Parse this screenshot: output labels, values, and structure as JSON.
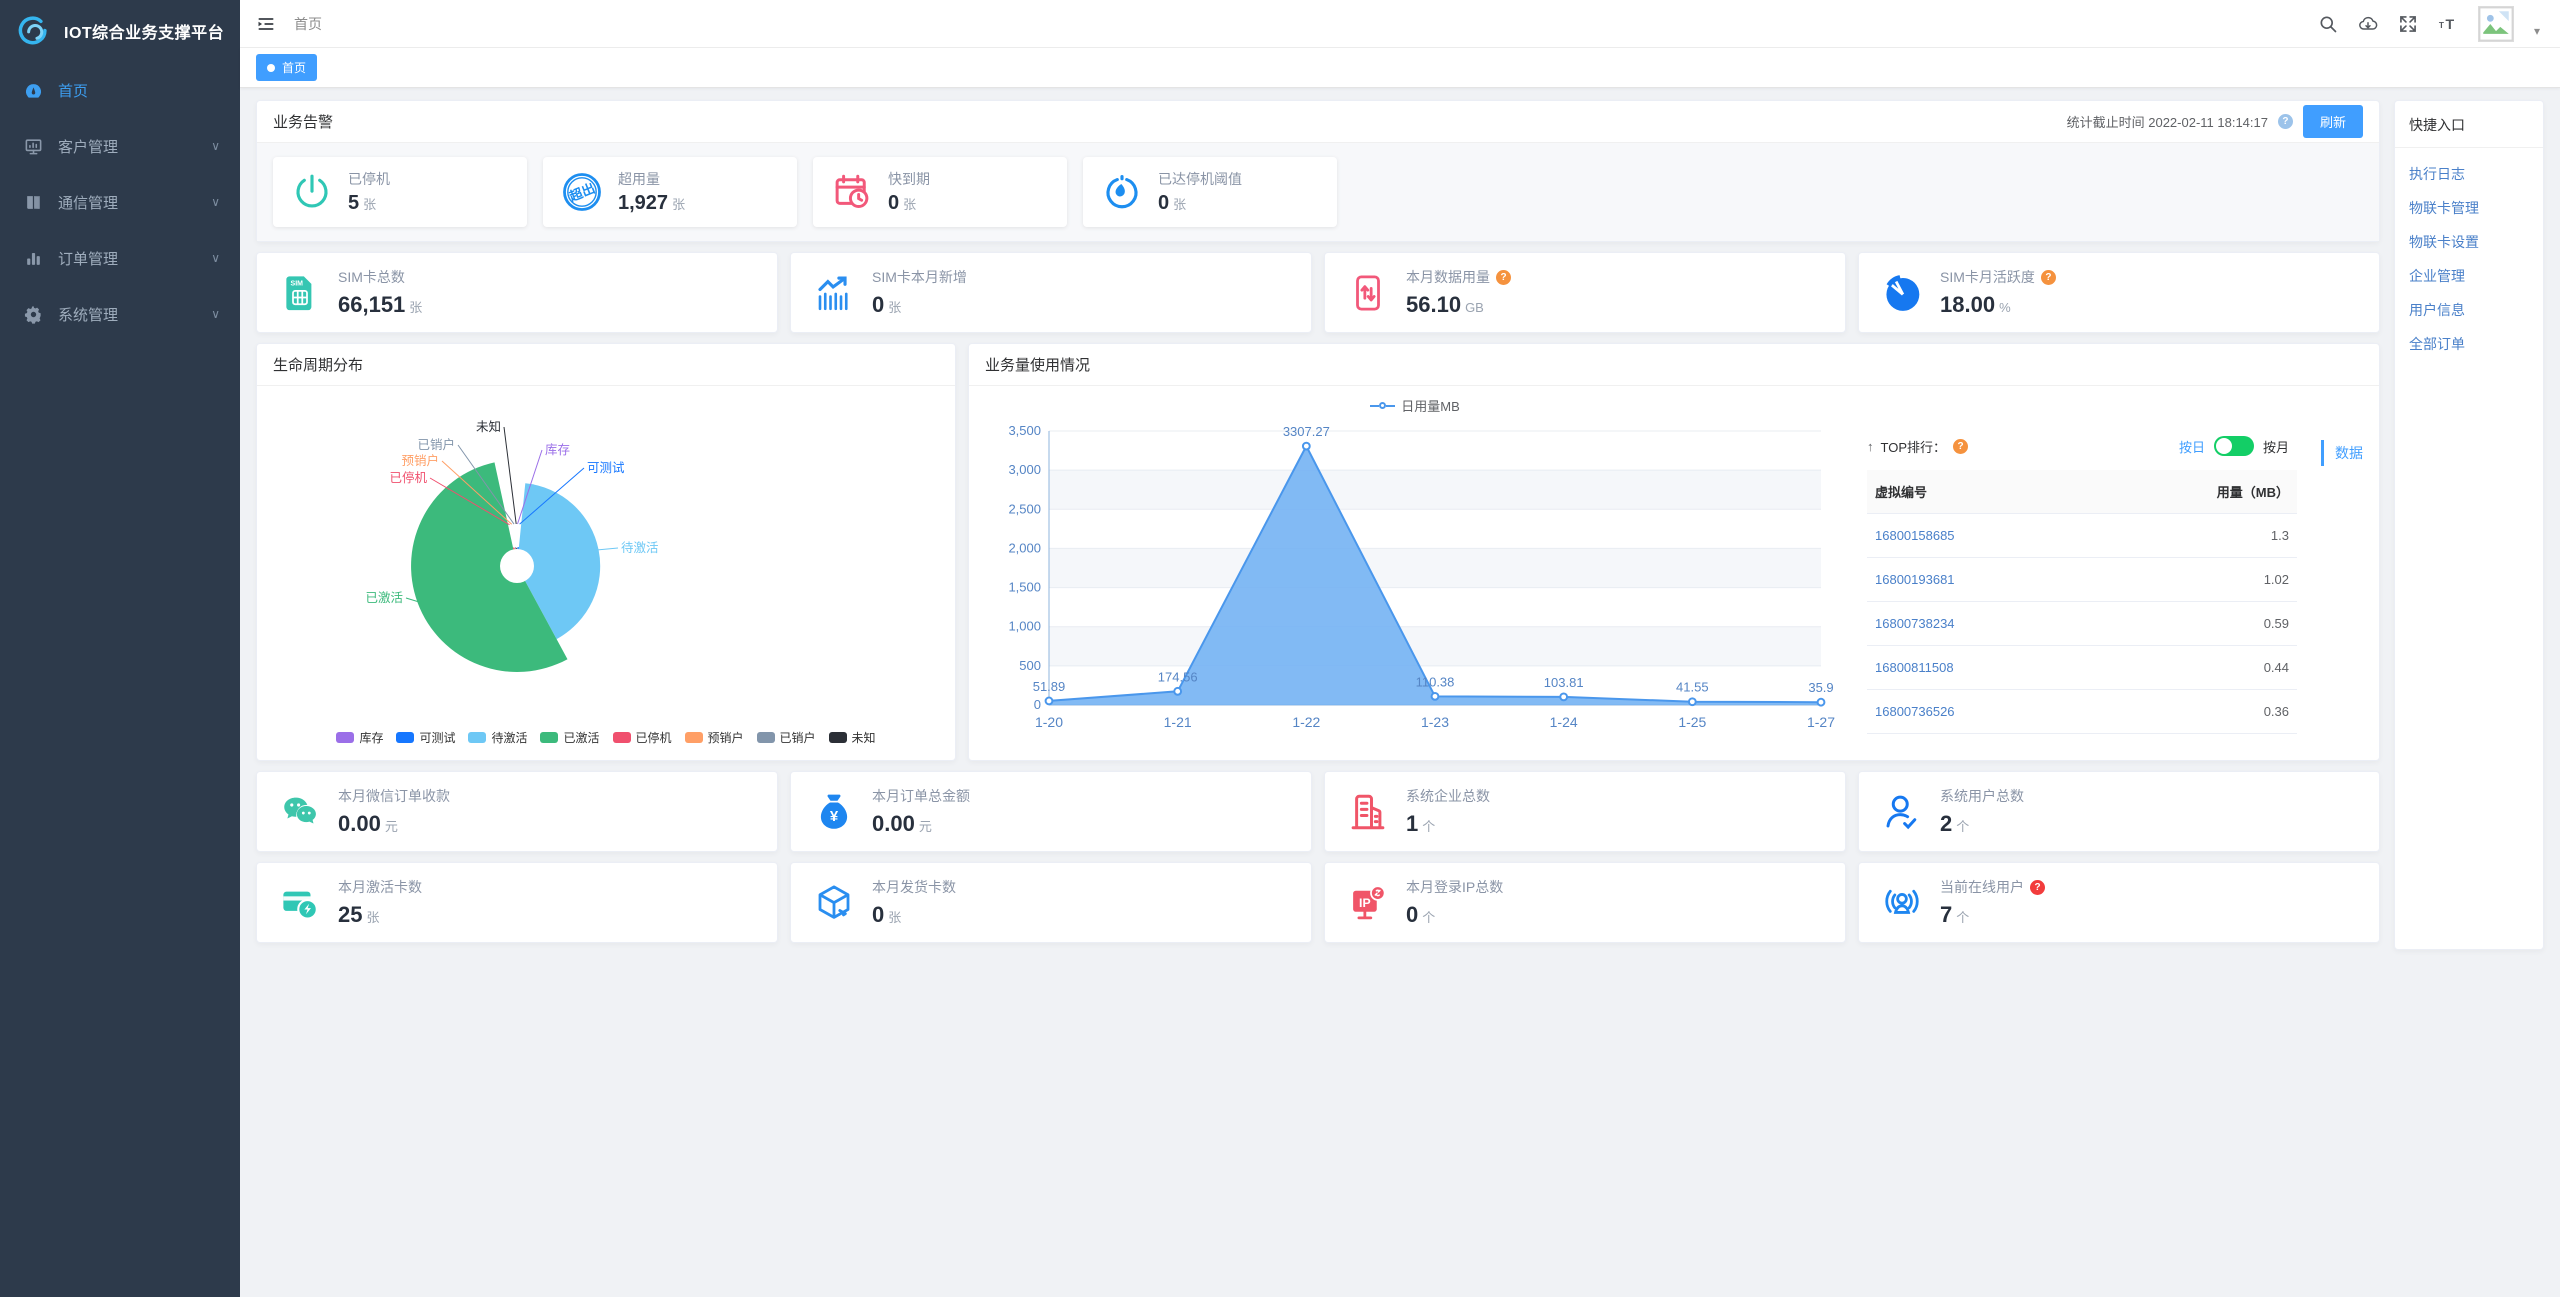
{
  "app": {
    "title": "IOT综合业务支撑平台"
  },
  "topbar": {
    "breadcrumb": "首页",
    "icon_names": [
      "collapse-menu",
      "search",
      "cloud-download",
      "fullscreen",
      "font-size",
      "avatar",
      "caret-down"
    ]
  },
  "tabs": [
    {
      "label": "首页",
      "active": true
    }
  ],
  "sidebar": {
    "items": [
      {
        "key": "home",
        "label": "首页",
        "icon": "dashboard-icon",
        "active": true,
        "has_children": false
      },
      {
        "key": "customer-mgmt",
        "label": "客户管理",
        "icon": "monitor-icon",
        "active": false,
        "has_children": true
      },
      {
        "key": "communication-mgmt",
        "label": "通信管理",
        "icon": "book-icon",
        "active": false,
        "has_children": true
      },
      {
        "key": "order-mgmt",
        "label": "订单管理",
        "icon": "bar-chart-icon",
        "active": false,
        "has_children": true
      },
      {
        "key": "system-mgmt",
        "label": "系统管理",
        "icon": "gear-icon",
        "active": false,
        "has_children": true
      }
    ]
  },
  "alert_section": {
    "title": "业务告警",
    "stats_time_label": "统计截止时间",
    "stats_time": "2022-02-11 18:14:17",
    "help_color": "#9cc3ea",
    "refresh_label": "刷新",
    "accent_color": "#409eff",
    "cards": [
      {
        "key": "stopped-cards",
        "label": "已停机",
        "value": "5",
        "unit": "张",
        "icon": "power-icon",
        "color": "#2fc7b5"
      },
      {
        "key": "over-usage-cards",
        "label": "超用量",
        "value": "1,927",
        "unit": "张",
        "icon": "over-usage-stamp-icon",
        "color": "#1d8ef0"
      },
      {
        "key": "expiring-cards",
        "label": "快到期",
        "value": "0",
        "unit": "张",
        "icon": "calendar-clock-icon",
        "color": "#f2587a"
      },
      {
        "key": "threshold-reached-cards",
        "label": "已达停机阈值",
        "value": "0",
        "unit": "张",
        "icon": "stopwatch-icon",
        "color": "#1d8ef0"
      }
    ]
  },
  "sim_stats": [
    {
      "key": "sim-total",
      "label": "SIM卡总数",
      "value": "66,151",
      "unit": "张",
      "icon": "sim-card-icon",
      "color": "#35c6b2"
    },
    {
      "key": "sim-new-month",
      "label": "SIM卡本月新增",
      "value": "0",
      "unit": "张",
      "icon": "trend-up-icon",
      "color": "#2a8ef0"
    },
    {
      "key": "data-usage-month",
      "label": "本月数据用量",
      "value": "56.10",
      "unit": "GB",
      "icon": "phone-data-icon",
      "color": "#f2587a",
      "help": "#f5923e"
    },
    {
      "key": "sim-activity-month",
      "label": "SIM卡月活跃度",
      "value": "18.00",
      "unit": "%",
      "icon": "pie-activity-icon",
      "color": "#1678f0",
      "help": "#f5923e"
    }
  ],
  "top_rank": {
    "title": "TOP排行：",
    "help_color": "#f5923e",
    "toggle_left_label": "按日",
    "toggle_right_label": "按月",
    "toggle_color": "#13ce66",
    "data_tab_label": "数据",
    "columns": [
      "虚拟编号",
      "用量（MB）"
    ],
    "rows": [
      {
        "id": "16800158685",
        "usage": "1.3"
      },
      {
        "id": "16800193681",
        "usage": "1.02"
      },
      {
        "id": "16800738234",
        "usage": "0.59"
      },
      {
        "id": "16800811508",
        "usage": "0.44"
      },
      {
        "id": "16800736526",
        "usage": "0.36"
      }
    ]
  },
  "bottom_stats_1": [
    {
      "key": "wechat-income-month",
      "label": "本月微信订单收款",
      "value": "0.00",
      "unit": "元",
      "icon": "wechat-icon",
      "color": "#3ec6ab"
    },
    {
      "key": "order-amount-month",
      "label": "本月订单总金额",
      "value": "0.00",
      "unit": "元",
      "icon": "money-bag-icon",
      "color": "#1e86f0"
    },
    {
      "key": "enterprise-total",
      "label": "系统企业总数",
      "value": "1",
      "unit": "个",
      "icon": "building-icon",
      "color": "#f05568"
    },
    {
      "key": "user-total",
      "label": "系统用户总数",
      "value": "2",
      "unit": "个",
      "icon": "user-check-icon",
      "color": "#1678f0"
    }
  ],
  "bottom_stats_2": [
    {
      "key": "activated-cards-month",
      "label": "本月激活卡数",
      "value": "25",
      "unit": "张",
      "icon": "card-activate-icon",
      "color": "#2fc7b5"
    },
    {
      "key": "shipped-cards-month",
      "label": "本月发货卡数",
      "value": "0",
      "unit": "张",
      "icon": "package-icon",
      "color": "#2a8ef0"
    },
    {
      "key": "login-ip-month",
      "label": "本月登录IP总数",
      "value": "0",
      "unit": "个",
      "icon": "ip-monitor-icon",
      "color": "#f05568"
    },
    {
      "key": "online-users",
      "label": "当前在线用户",
      "value": "7",
      "unit": "个",
      "icon": "broadcast-user-icon",
      "color": "#1e86f0",
      "help": "#f23c3c"
    }
  ],
  "quick_entry": {
    "title": "快捷入口",
    "link_color": "#4a80c9",
    "links": [
      "执行日志",
      "物联卡管理",
      "物联卡设置",
      "企业管理",
      "用户信息",
      "全部订单"
    ]
  },
  "chart_data": [
    {
      "type": "pie",
      "title": "生命周期分布",
      "rose": true,
      "donut": true,
      "legend_position": "bottom",
      "series": [
        {
          "name": "库存",
          "value": 0.4,
          "color": "#9b6fe8"
        },
        {
          "name": "可测试",
          "value": 1.2,
          "color": "#1677ff"
        },
        {
          "name": "待激活",
          "value": 40.5,
          "color": "#6ec8f5"
        },
        {
          "name": "已激活",
          "value": 54.5,
          "color": "#3cba7c"
        },
        {
          "name": "已停机",
          "value": 1.1,
          "color": "#f0506e"
        },
        {
          "name": "预销户",
          "value": 0.6,
          "color": "#ff9f66"
        },
        {
          "name": "已销户",
          "value": 1.1,
          "color": "#8295ab"
        },
        {
          "name": "未知",
          "value": 0.6,
          "color": "#2b2f36"
        }
      ]
    },
    {
      "type": "area",
      "title": "业务量使用情况",
      "legend_position": "top",
      "x": [
        "1-20",
        "1-21",
        "1-22",
        "1-23",
        "1-24",
        "1-25",
        "1-27"
      ],
      "series": [
        {
          "name": "日用量MB",
          "values": [
            51.89,
            174.56,
            3307.27,
            110.38,
            103.81,
            41.55,
            35.9
          ]
        }
      ],
      "point_labels": [
        "51.89",
        "174.56",
        "3307.27",
        "110.38",
        "103.81",
        "41.55",
        "35.9"
      ],
      "ylim": [
        0,
        3500
      ],
      "yticks": [
        "0",
        "500",
        "1,000",
        "1,500",
        "2,000",
        "2,500",
        "3,000",
        "3,500"
      ],
      "grid": true,
      "line_color": "#4a97ec",
      "area_color": "#74b2f3",
      "axis_label_color": "#5585c5"
    }
  ]
}
